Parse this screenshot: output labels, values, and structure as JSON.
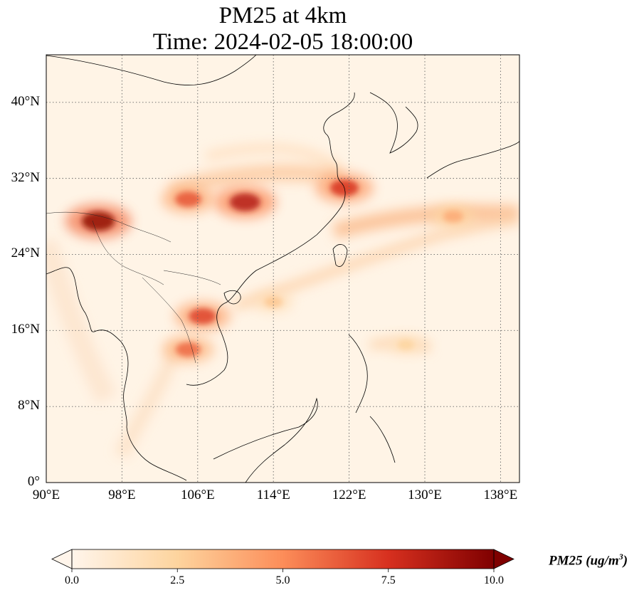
{
  "title": {
    "line1": "PM25 at 4km",
    "line2": "Time: 2024-02-05 18:00:00"
  },
  "map": {
    "lon_range": [
      90,
      140
    ],
    "lat_range": [
      0,
      45
    ],
    "lon_ticks": [
      {
        "value": 90,
        "label": "90°E"
      },
      {
        "value": 98,
        "label": "98°E"
      },
      {
        "value": 106,
        "label": "106°E"
      },
      {
        "value": 114,
        "label": "114°E"
      },
      {
        "value": 122,
        "label": "122°E"
      },
      {
        "value": 130,
        "label": "130°E"
      },
      {
        "value": 138,
        "label": "138°E"
      }
    ],
    "lat_ticks": [
      {
        "value": 0,
        "label": "0°"
      },
      {
        "value": 8,
        "label": "8°N"
      },
      {
        "value": 16,
        "label": "16°N"
      },
      {
        "value": 24,
        "label": "24°N"
      },
      {
        "value": 32,
        "label": "32°N"
      },
      {
        "value": 40,
        "label": "40°N"
      }
    ],
    "gridlines": true,
    "background_color": "#fff4e6"
  },
  "colorbar": {
    "label_text": "PM25 (ug/m",
    "label_exponent": "3",
    "label_close": ")",
    "min": 0,
    "max": 10,
    "extend": "both",
    "ticks": [
      {
        "value": 0,
        "label": "0.0"
      },
      {
        "value": 2.5,
        "label": "2.5"
      },
      {
        "value": 5,
        "label": "5.0"
      },
      {
        "value": 7.5,
        "label": "7.5"
      },
      {
        "value": 10,
        "label": "10.0"
      }
    ],
    "colors": [
      "#fff5eb",
      "#fdd49e",
      "#fc8d59",
      "#d7301f",
      "#7f0000"
    ]
  },
  "plumes": [
    {
      "name": "tibet-hotspot",
      "lon": 95.5,
      "lat": 27.5,
      "level": 9.5
    },
    {
      "name": "central-china",
      "lon": 111,
      "lat": 29.5,
      "level": 8.5
    },
    {
      "name": "central-china-west",
      "lon": 105,
      "lat": 29.8,
      "level": 6.5
    },
    {
      "name": "east-china-coast",
      "lon": 121.5,
      "lat": 31,
      "level": 7.5
    },
    {
      "name": "north-vietnam",
      "lon": 106.5,
      "lat": 17.5,
      "level": 7
    },
    {
      "name": "laos",
      "lon": 105,
      "lat": 14,
      "level": 6
    },
    {
      "name": "south-china-sea-band",
      "lon": 114,
      "lat": 19,
      "level": 3
    },
    {
      "name": "pacific-band",
      "lon": 133,
      "lat": 28,
      "level": 4
    },
    {
      "name": "philippine-sea",
      "lon": 128,
      "lat": 14.5,
      "level": 2.5
    }
  ]
}
